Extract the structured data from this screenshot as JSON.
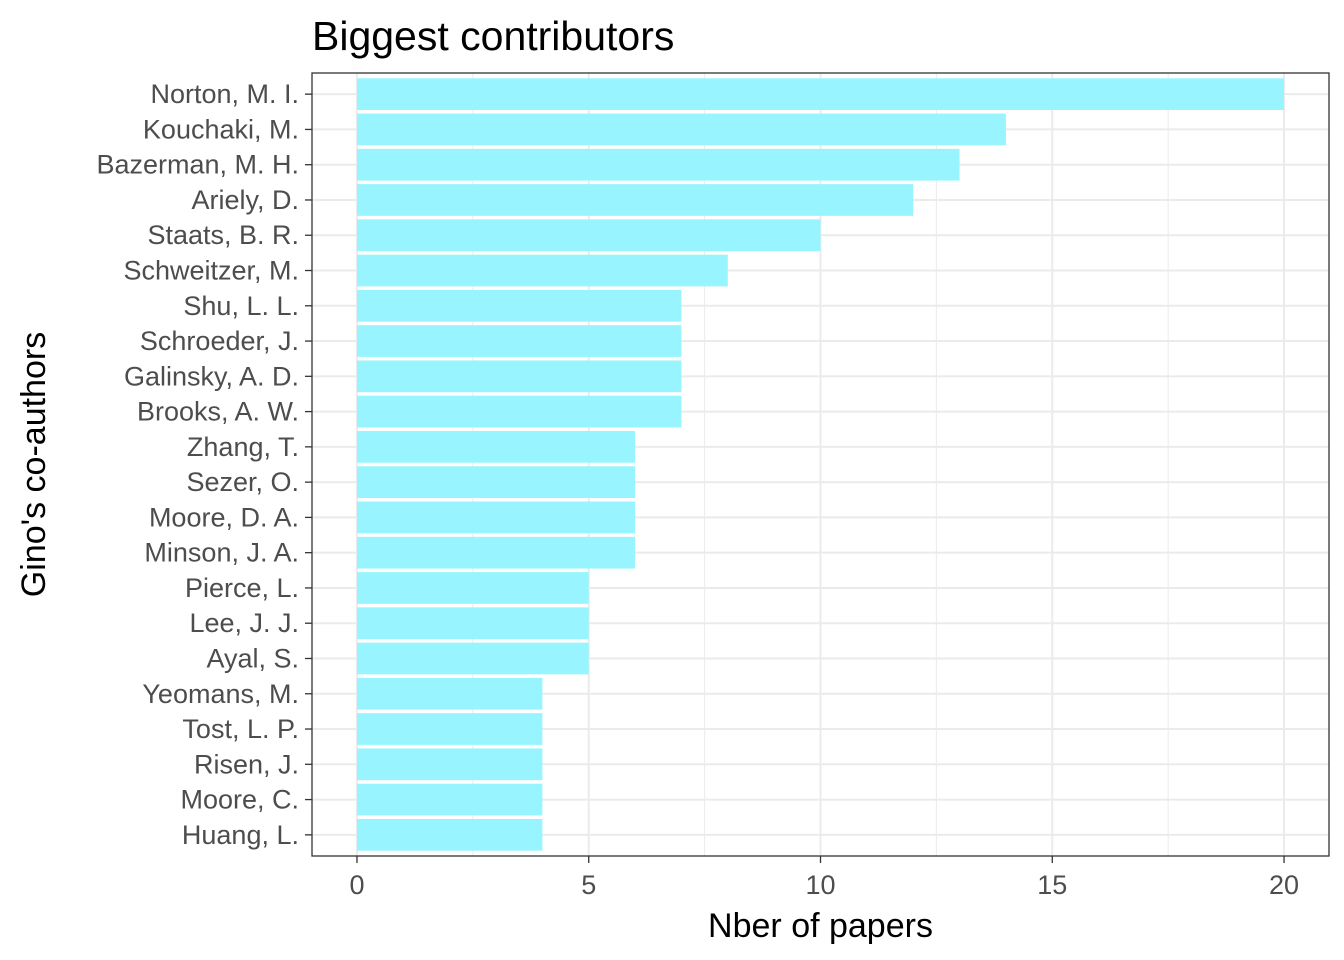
{
  "chart_data": {
    "type": "bar",
    "orientation": "horizontal",
    "title": "Biggest contributors",
    "xlabel": "Nber of papers",
    "ylabel": "Gino's co-authors",
    "categories": [
      "Norton, M. I.",
      "Kouchaki, M.",
      "Bazerman, M. H.",
      "Ariely, D.",
      "Staats, B. R.",
      "Schweitzer, M.",
      "Shu, L. L.",
      "Schroeder, J.",
      "Galinsky, A. D.",
      "Brooks, A. W.",
      "Zhang, T.",
      "Sezer, O.",
      "Moore, D. A.",
      "Minson, J. A.",
      "Pierce, L.",
      "Lee, J. J.",
      "Ayal, S.",
      "Yeomans, M.",
      "Tost, L. P.",
      "Risen, J.",
      "Moore, C.",
      "Huang, L."
    ],
    "values": [
      20,
      14,
      13,
      12,
      10,
      8,
      7,
      7,
      7,
      7,
      6,
      6,
      6,
      6,
      5,
      5,
      5,
      4,
      4,
      4,
      4,
      4
    ],
    "xlim": [
      -0.97,
      20.97
    ],
    "xticks": [
      0,
      5,
      10,
      15,
      20
    ],
    "grid": true,
    "legend": "none",
    "bar_color": "#98F5FF",
    "grid_color": "#ebebeb",
    "panel_border_color": "#333333"
  }
}
